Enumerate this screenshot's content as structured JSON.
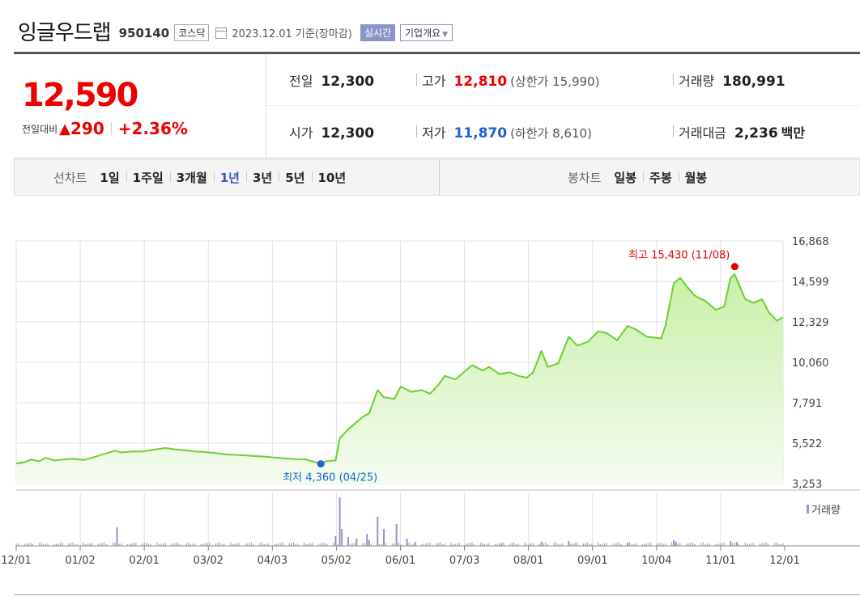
{
  "header": {
    "company": "잉글우드랩",
    "code": "950140",
    "market": "코스닥",
    "date": "2023.12.01 기준(장마감)",
    "realtime": "실시간",
    "overview": "기업개요",
    "overview_caret": "▼"
  },
  "price": {
    "current": "12,590",
    "change_label": "전일대비",
    "change_icon": "▲",
    "change_amount": "290",
    "change_percent": "+2.36%",
    "up_color": "#e00000",
    "down_color": "#1a63d6"
  },
  "stats": {
    "prev_close_label": "전일",
    "prev_close": "12,300",
    "high_label": "고가",
    "high": "12,810",
    "upper_limit": "(상한가 15,990)",
    "volume_label": "거래량",
    "volume": "180,991",
    "open_label": "시가",
    "open": "12,300",
    "low_label": "저가",
    "low": "11,870",
    "lower_limit": "(하한가 8,610)",
    "value_label": "거래대금",
    "value": "2,236",
    "value_unit": "백만"
  },
  "tabs": {
    "line_label": "선차트",
    "line_periods": [
      "1일",
      "1주일",
      "3개월",
      "1년",
      "3년",
      "5년",
      "10년"
    ],
    "active_period": "1년",
    "candle_label": "봉차트",
    "candle_periods": [
      "일봉",
      "주봉",
      "월봉"
    ]
  },
  "chart_data": {
    "type": "area",
    "y_ticks": [
      "16,868",
      "14,599",
      "12,329",
      "10,060",
      "7,791",
      "5,522",
      "3,253"
    ],
    "ylim": [
      3253,
      16868
    ],
    "x_labels": [
      "12/01",
      "01/02",
      "02/01",
      "03/02",
      "04/03",
      "05/02",
      "06/01",
      "07/03",
      "08/01",
      "09/01",
      "10/04",
      "11/01",
      "12/01"
    ],
    "points": [
      [
        "2022-12-01",
        4380
      ],
      [
        "2022-12-05",
        4450
      ],
      [
        "2022-12-08",
        4600
      ],
      [
        "2022-12-12",
        4500
      ],
      [
        "2022-12-15",
        4700
      ],
      [
        "2022-12-19",
        4550
      ],
      [
        "2022-12-23",
        4600
      ],
      [
        "2022-12-28",
        4650
      ],
      [
        "2023-01-02",
        4580
      ],
      [
        "2023-01-06",
        4700
      ],
      [
        "2023-01-10",
        4850
      ],
      [
        "2023-01-13",
        4950
      ],
      [
        "2023-01-17",
        5100
      ],
      [
        "2023-01-20",
        5000
      ],
      [
        "2023-01-25",
        5050
      ],
      [
        "2023-01-30",
        5050
      ],
      [
        "2023-02-03",
        5130
      ],
      [
        "2023-02-07",
        5200
      ],
      [
        "2023-02-10",
        5250
      ],
      [
        "2023-02-14",
        5180
      ],
      [
        "2023-02-17",
        5150
      ],
      [
        "2023-02-21",
        5100
      ],
      [
        "2023-02-24",
        5050
      ],
      [
        "2023-02-28",
        5030
      ],
      [
        "2023-03-03",
        5000
      ],
      [
        "2023-03-07",
        4950
      ],
      [
        "2023-03-10",
        4900
      ],
      [
        "2023-03-14",
        4870
      ],
      [
        "2023-03-17",
        4850
      ],
      [
        "2023-03-21",
        4830
      ],
      [
        "2023-03-24",
        4800
      ],
      [
        "2023-03-28",
        4780
      ],
      [
        "2023-03-31",
        4750
      ],
      [
        "2023-04-04",
        4700
      ],
      [
        "2023-04-07",
        4680
      ],
      [
        "2023-04-11",
        4640
      ],
      [
        "2023-04-14",
        4620
      ],
      [
        "2023-04-18",
        4600
      ],
      [
        "2023-04-21",
        4500
      ],
      [
        "2023-04-25",
        4360
      ],
      [
        "2023-04-27",
        4500
      ],
      [
        "2023-05-02",
        4550
      ],
      [
        "2023-05-04",
        5800
      ],
      [
        "2023-05-08",
        6300
      ],
      [
        "2023-05-11",
        6600
      ],
      [
        "2023-05-15",
        7000
      ],
      [
        "2023-05-18",
        7200
      ],
      [
        "2023-05-22",
        8500
      ],
      [
        "2023-05-25",
        8100
      ],
      [
        "2023-05-30",
        8000
      ],
      [
        "2023-06-02",
        8700
      ],
      [
        "2023-06-07",
        8400
      ],
      [
        "2023-06-12",
        8500
      ],
      [
        "2023-06-16",
        8300
      ],
      [
        "2023-06-20",
        8800
      ],
      [
        "2023-06-23",
        9300
      ],
      [
        "2023-06-28",
        9100
      ],
      [
        "2023-07-03",
        9600
      ],
      [
        "2023-07-06",
        9900
      ],
      [
        "2023-07-11",
        9600
      ],
      [
        "2023-07-14",
        9800
      ],
      [
        "2023-07-19",
        9400
      ],
      [
        "2023-07-24",
        9500
      ],
      [
        "2023-07-28",
        9300
      ],
      [
        "2023-08-01",
        9200
      ],
      [
        "2023-08-04",
        9500
      ],
      [
        "2023-08-08",
        10700
      ],
      [
        "2023-08-11",
        9800
      ],
      [
        "2023-08-16",
        10000
      ],
      [
        "2023-08-21",
        11500
      ],
      [
        "2023-08-25",
        11000
      ],
      [
        "2023-08-30",
        11200
      ],
      [
        "2023-09-04",
        11800
      ],
      [
        "2023-09-08",
        11700
      ],
      [
        "2023-09-13",
        11300
      ],
      [
        "2023-09-18",
        12100
      ],
      [
        "2023-09-22",
        11900
      ],
      [
        "2023-09-27",
        11500
      ],
      [
        "2023-10-04",
        11400
      ],
      [
        "2023-10-06",
        12100
      ],
      [
        "2023-10-10",
        14500
      ],
      [
        "2023-10-13",
        14800
      ],
      [
        "2023-10-17",
        14200
      ],
      [
        "2023-10-20",
        13800
      ],
      [
        "2023-10-25",
        13500
      ],
      [
        "2023-10-30",
        13000
      ],
      [
        "2023-11-03",
        13200
      ],
      [
        "2023-11-06",
        14800
      ],
      [
        "2023-11-08",
        15000
      ],
      [
        "2023-11-13",
        13600
      ],
      [
        "2023-11-17",
        13400
      ],
      [
        "2023-11-21",
        13600
      ],
      [
        "2023-11-24",
        12900
      ],
      [
        "2023-11-28",
        12400
      ],
      [
        "2023-12-01",
        12590
      ]
    ],
    "max_label": "최고 15,430 (11/08)",
    "max_date": "2023-11-08",
    "max_value": 15430,
    "min_label": "최저 4,360 (04/25)",
    "min_date": "2023-04-25",
    "min_value": 4360,
    "volume_label": "거래량",
    "volume_points": [
      [
        "2023-01-18",
        0.38
      ],
      [
        "2023-05-02",
        0.2
      ],
      [
        "2023-05-04",
        1.0
      ],
      [
        "2023-05-05",
        0.35
      ],
      [
        "2023-05-08",
        0.18
      ],
      [
        "2023-05-12",
        0.15
      ],
      [
        "2023-05-17",
        0.25
      ],
      [
        "2023-05-18",
        0.12
      ],
      [
        "2023-05-22",
        0.6
      ],
      [
        "2023-05-25",
        0.35
      ],
      [
        "2023-05-31",
        0.45
      ],
      [
        "2023-06-05",
        0.15
      ],
      [
        "2023-06-09",
        0.08
      ],
      [
        "2023-07-20",
        0.06
      ],
      [
        "2023-08-08",
        0.09
      ],
      [
        "2023-08-21",
        0.1
      ],
      [
        "2023-09-18",
        0.07
      ],
      [
        "2023-10-10",
        0.12
      ],
      [
        "2023-10-11",
        0.09
      ],
      [
        "2023-11-06",
        0.1
      ],
      [
        "2023-11-09",
        0.08
      ]
    ],
    "colors": {
      "line": "#6ccf30",
      "fill_top": "#c8f0a8",
      "fill_bottom": "#f4fcef",
      "volume": "#a08ec8",
      "grid": "#e2e2e2",
      "max_dot": "#e00000",
      "min_dot": "#1a63d6"
    }
  }
}
